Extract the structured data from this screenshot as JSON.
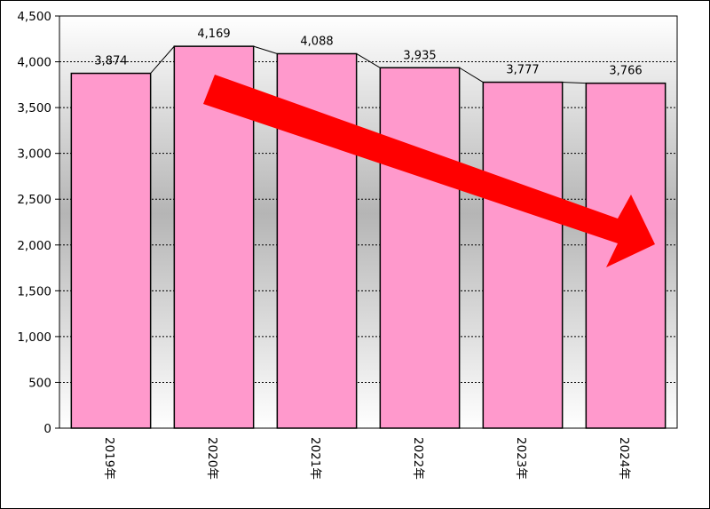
{
  "chart_data": {
    "type": "bar",
    "categories": [
      "2019年",
      "2020年",
      "2021年",
      "2022年",
      "2023年",
      "2024年"
    ],
    "values": [
      3874,
      4169,
      4088,
      3935,
      3777,
      3766
    ],
    "data_labels": [
      "3,874",
      "4,169",
      "4,088",
      "3,935",
      "3,777",
      "3,766"
    ],
    "ylim": [
      0,
      4500
    ],
    "yticks": [
      0,
      500,
      1000,
      1500,
      2000,
      2500,
      3000,
      3500,
      4000,
      4500
    ],
    "ytick_labels": [
      "0",
      "500",
      "1,000",
      "1,500",
      "2,000",
      "2,500",
      "3,000",
      "3,500",
      "4,000",
      "4,500"
    ],
    "grid": true,
    "title": "",
    "xlabel": "",
    "ylabel": "",
    "bar_color": "#ff99cc",
    "bar_edge_color": "#000000",
    "plot_background": "gradient-white-to-gray",
    "series_lines": true,
    "annotation": {
      "type": "arrow",
      "direction": "down-right",
      "color": "#ff0000"
    }
  }
}
